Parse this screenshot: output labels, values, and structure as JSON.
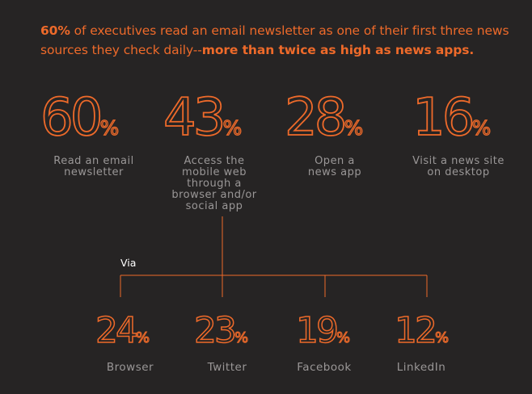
{
  "headline": {
    "bold_lead": "60%",
    "text": " of executives read an email newsletter as one of their first three news sources they check daily--",
    "bold_tail": "more than twice as high as news apps."
  },
  "via_label": "Via",
  "chart_data": [
    {
      "type": "table",
      "unit": "%",
      "categories": [
        "Read an email newsletter",
        "Access the mobile web through a browser and/or social app",
        "Open a news app",
        "Visit a news site on desktop"
      ],
      "values": [
        60,
        43,
        28,
        16
      ]
    },
    {
      "type": "table",
      "unit": "%",
      "categories": [
        "Browser",
        "Twitter",
        "Facebook",
        "LinkedIn"
      ],
      "values": [
        24,
        23,
        19,
        12
      ]
    }
  ],
  "colors": {
    "accent": "#ee6a2a",
    "background": "#262424",
    "label": "#9a9797"
  }
}
